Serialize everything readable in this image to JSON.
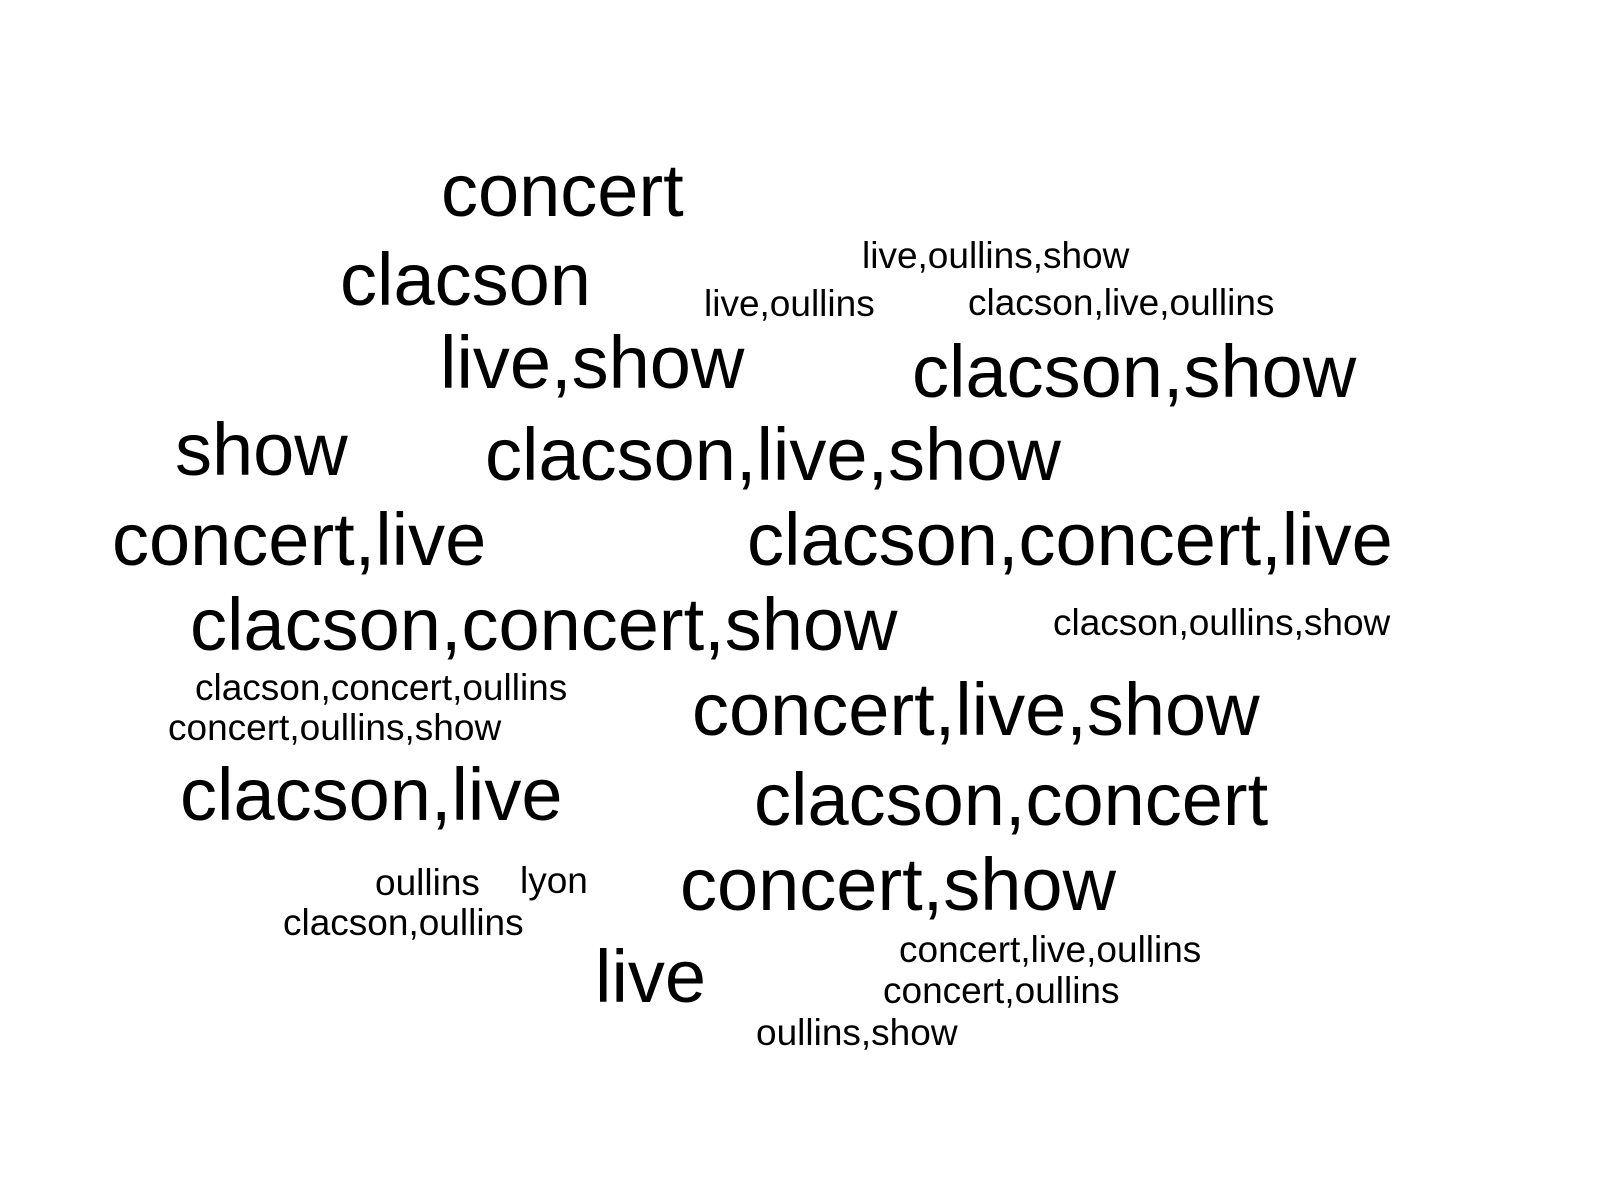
{
  "chart_data": {
    "type": "wordcloud",
    "text_color": "#000000",
    "background_color": "#ffffff",
    "words": [
      {
        "text": "concert",
        "size": 3
      },
      {
        "text": "clacson",
        "size": 3
      },
      {
        "text": "live,oullins,show",
        "size": 1
      },
      {
        "text": "live,oullins",
        "size": 1
      },
      {
        "text": "clacson,live,oullins",
        "size": 1
      },
      {
        "text": "live,show",
        "size": 3
      },
      {
        "text": "clacson,show",
        "size": 3
      },
      {
        "text": "show",
        "size": 3
      },
      {
        "text": "clacson,live,show",
        "size": 3
      },
      {
        "text": "concert,live",
        "size": 3
      },
      {
        "text": "clacson,concert,live",
        "size": 3
      },
      {
        "text": "clacson,concert,show",
        "size": 3
      },
      {
        "text": "clacson,oullins,show",
        "size": 1
      },
      {
        "text": "clacson,concert,oullins",
        "size": 1
      },
      {
        "text": "concert,oullins,show",
        "size": 1
      },
      {
        "text": "concert,live,show",
        "size": 3
      },
      {
        "text": "clacson,live",
        "size": 3
      },
      {
        "text": "clacson,concert",
        "size": 3
      },
      {
        "text": "oullins",
        "size": 1
      },
      {
        "text": "lyon",
        "size": 1
      },
      {
        "text": "concert,show",
        "size": 3
      },
      {
        "text": "clacson,oullins",
        "size": 1
      },
      {
        "text": "live",
        "size": 3
      },
      {
        "text": "concert,live,oullins",
        "size": 1
      },
      {
        "text": "concert,oullins",
        "size": 1
      },
      {
        "text": "oullins,show",
        "size": 1
      }
    ]
  }
}
